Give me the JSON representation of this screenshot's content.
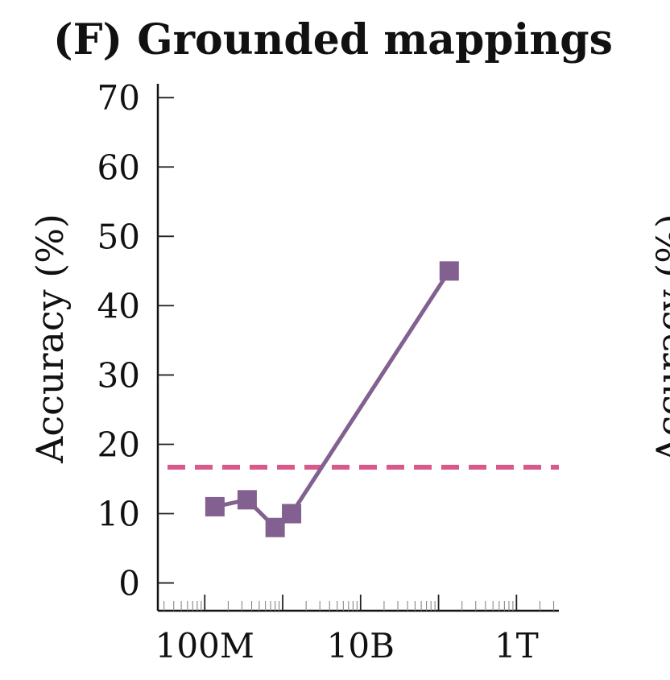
{
  "chart_data": {
    "type": "line",
    "title": "(F) Grounded mappings",
    "ylabel": "Accuracy (%)",
    "xlabel": "",
    "x_scale": "log",
    "xlim": [
      25000000,
      3500000000000
    ],
    "ylim": [
      -4,
      72
    ],
    "yticks": [
      0,
      10,
      20,
      30,
      40,
      50,
      60,
      70
    ],
    "xticks": [
      {
        "value": 100000000,
        "label": "100M"
      },
      {
        "value": 10000000000,
        "label": "10B"
      },
      {
        "value": 1000000000000,
        "label": "1T"
      }
    ],
    "grid": false,
    "legend": "none",
    "series": [
      {
        "color": "#82608f",
        "marker": "square",
        "points": [
          {
            "x": 135000000,
            "y": 11
          },
          {
            "x": 350000000,
            "y": 12
          },
          {
            "x": 800000000,
            "y": 8
          },
          {
            "x": 1300000000,
            "y": 10
          },
          {
            "x": 137000000000,
            "y": 45
          }
        ]
      }
    ],
    "reference_lines": [
      {
        "y": 16.7,
        "color": "#d85a8c",
        "style": "dashed"
      }
    ],
    "neighbor_fragment_label": "Accuracy (%)"
  }
}
